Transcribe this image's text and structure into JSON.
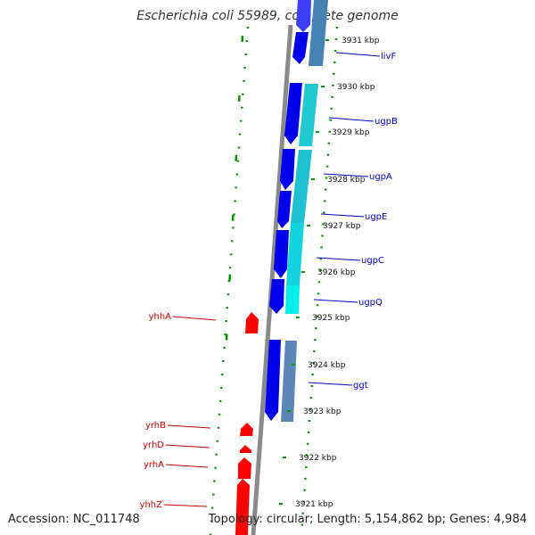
{
  "title": "Escherichia coli 55989, complete genome",
  "accession": "Accession: NC_011748",
  "summary": "Topology: circular; Length: 5,154,862 bp; Genes: 4,984",
  "colors": {
    "backbone": "#8a8a8a",
    "forward_cds": "#0000ee",
    "reverse_cds": "#ff0000",
    "blast_hit_light": "#00eeee",
    "blast_hit_dark": "#4682b4",
    "gc_skew": "#009900",
    "forward_label": "#0000cc",
    "reverse_label": "#cc0000"
  },
  "ticks": [
    "3931 kbp",
    "3930 kbp",
    "3929 kbp",
    "3928 kbp",
    "3927 kbp",
    "3926 kbp",
    "3925 kbp",
    "3924 kbp",
    "3923 kbp",
    "3922 kbp",
    "3921 kbp"
  ],
  "forward_genes": [
    "livF",
    "ugpB",
    "ugpA",
    "ugpE",
    "ugpC",
    "ugpQ",
    "ggt"
  ],
  "reverse_genes": [
    "yhhA",
    "yrhB",
    "yrhD",
    "yrhA",
    "yhhZ"
  ]
}
